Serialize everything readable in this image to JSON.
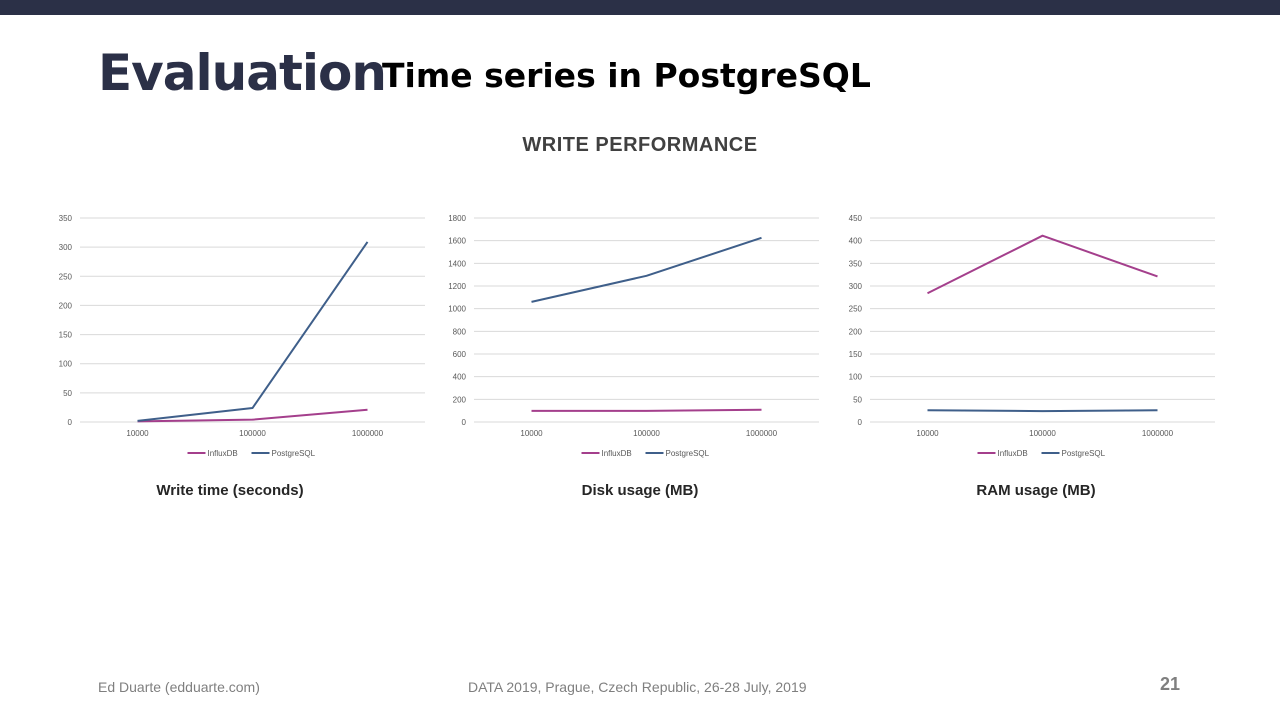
{
  "slide": {
    "title": "Evaluation",
    "subtitle": "Time series in PostgreSQL",
    "section_heading": "WRITE PERFORMANCE",
    "footer_left": "Ed Duarte (edduarte.com)",
    "footer_center": "DATA 2019, Prague, Czech Republic, 26-28 July, 2019",
    "page_number": "21"
  },
  "colors": {
    "accent": "#2b3047",
    "influxdb": "#a43f8c",
    "postgresql": "#3f5f8a",
    "grid": "#d9d9d9"
  },
  "chart_data": [
    {
      "type": "line",
      "caption": "Write time (seconds)",
      "x": [
        "10000",
        "100000",
        "1000000"
      ],
      "ylim": [
        0,
        350
      ],
      "yticks": [
        0,
        50,
        100,
        150,
        200,
        250,
        300,
        350
      ],
      "grid": true,
      "legend": "bottom",
      "series": [
        {
          "name": "InfluxDB",
          "color": "#a43f8c",
          "values": [
            1,
            4,
            21
          ]
        },
        {
          "name": "PostgreSQL",
          "color": "#3f5f8a",
          "values": [
            2,
            24,
            309
          ]
        }
      ]
    },
    {
      "type": "line",
      "caption": "Disk usage (MB)",
      "x": [
        "10000",
        "100000",
        "1000000"
      ],
      "ylim": [
        0,
        1800
      ],
      "yticks": [
        0,
        200,
        400,
        600,
        800,
        1000,
        1200,
        1400,
        1600,
        1800
      ],
      "grid": true,
      "legend": "bottom",
      "series": [
        {
          "name": "InfluxDB",
          "color": "#a43f8c",
          "values": [
            98,
            98,
            108
          ]
        },
        {
          "name": "PostgreSQL",
          "color": "#3f5f8a",
          "values": [
            1060,
            1290,
            1625
          ]
        }
      ]
    },
    {
      "type": "line",
      "caption": "RAM usage (MB)",
      "x": [
        "10000",
        "100000",
        "1000000"
      ],
      "ylim": [
        0,
        450
      ],
      "yticks": [
        0,
        50,
        100,
        150,
        200,
        250,
        300,
        350,
        400,
        450
      ],
      "grid": true,
      "legend": "bottom",
      "series": [
        {
          "name": "InfluxDB",
          "color": "#a43f8c",
          "values": [
            284,
            411,
            321
          ]
        },
        {
          "name": "PostgreSQL",
          "color": "#3f5f8a",
          "values": [
            26,
            24,
            26
          ]
        }
      ]
    }
  ]
}
